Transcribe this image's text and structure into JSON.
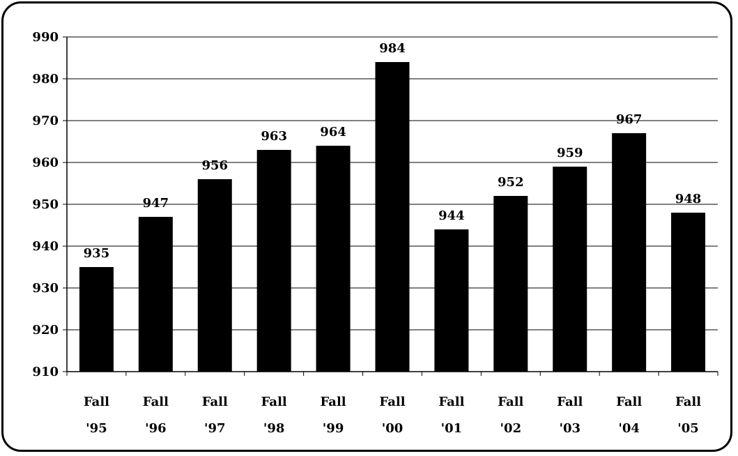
{
  "chart_data": {
    "type": "bar",
    "title": "",
    "xlabel": "",
    "ylabel": "",
    "categories": [
      [
        "Fall",
        "'95"
      ],
      [
        "Fall",
        "'96"
      ],
      [
        "Fall",
        "'97"
      ],
      [
        "Fall",
        "'98"
      ],
      [
        "Fall",
        "'99"
      ],
      [
        "Fall",
        "'00"
      ],
      [
        "Fall",
        "'01"
      ],
      [
        "Fall",
        "'02"
      ],
      [
        "Fall",
        "'03"
      ],
      [
        "Fall",
        "'04"
      ],
      [
        "Fall",
        "'05"
      ]
    ],
    "values": [
      935,
      947,
      956,
      963,
      964,
      984,
      944,
      952,
      959,
      967,
      948
    ],
    "ylim": [
      910,
      990
    ],
    "yticks": [
      910,
      920,
      930,
      940,
      950,
      960,
      970,
      980,
      990
    ],
    "grid": true,
    "bar_color": "#000000",
    "grid_color": "#000000"
  }
}
